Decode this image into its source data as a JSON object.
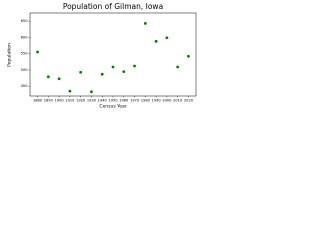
{
  "chart_data": {
    "type": "scatter",
    "title": "Population of Gilman, Iowa",
    "x_label": "Census Year",
    "y_label": "Population",
    "x": [
      1880,
      1890,
      1900,
      1910,
      1920,
      1930,
      1940,
      1950,
      1960,
      1970,
      1980,
      1990,
      2000,
      2010,
      2020
    ],
    "values": [
      555,
      479,
      473,
      435,
      493,
      433,
      487,
      509,
      495,
      512,
      643,
      588,
      599,
      509,
      542
    ],
    "color": "#008000",
    "xlim": [
      1873,
      2027
    ],
    "xticks": [
      1880,
      1890,
      1900,
      1910,
      1920,
      1930,
      1940,
      1950,
      1960,
      1970,
      1980,
      1990,
      2000,
      2010,
      2020
    ],
    "ylim": [
      420,
      675
    ],
    "yticks": [
      450,
      500,
      550,
      600,
      650
    ]
  }
}
